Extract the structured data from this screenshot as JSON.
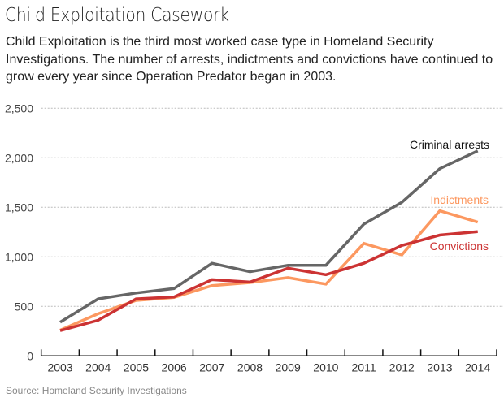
{
  "header": {
    "title": "Child Exploitation Casework",
    "subtitle": "Child Exploitation is the third most worked case type in Homeland Security Investigations. The number of arrests, indictments and convictions have continued to grow every year since Operation Predator began in 2003."
  },
  "footer": {
    "source": "Source: Homeland Security Investigations"
  },
  "chart_data": {
    "type": "line",
    "title": "Child Exploitation Casework",
    "xlabel": "",
    "ylabel": "",
    "categories": [
      "2003",
      "2004",
      "2005",
      "2006",
      "2007",
      "2008",
      "2009",
      "2010",
      "2011",
      "2012",
      "2013",
      "2014"
    ],
    "ylim": [
      0,
      2500
    ],
    "yticks": [
      0,
      500,
      1000,
      1500,
      2000,
      2500
    ],
    "ytick_labels": [
      "0",
      "500",
      "1,000",
      "1,500",
      "2,000",
      "2,500"
    ],
    "grid": true,
    "legend": "inline-labels-right",
    "series": [
      {
        "name": "Criminal arrests",
        "color": "#666666",
        "label_color": "#111111",
        "values": [
          340,
          575,
          635,
          680,
          935,
          850,
          915,
          915,
          1330,
          1550,
          1890,
          2070
        ]
      },
      {
        "name": "Indictments",
        "color": "#fc9860",
        "label_color": "#fc9860",
        "values": [
          260,
          425,
          560,
          590,
          710,
          740,
          790,
          725,
          1135,
          1020,
          1465,
          1350
        ]
      },
      {
        "name": "Convictions",
        "color": "#cc3333",
        "label_color": "#cc3333",
        "values": [
          255,
          360,
          575,
          595,
          770,
          745,
          885,
          820,
          935,
          1115,
          1220,
          1255
        ]
      }
    ]
  }
}
